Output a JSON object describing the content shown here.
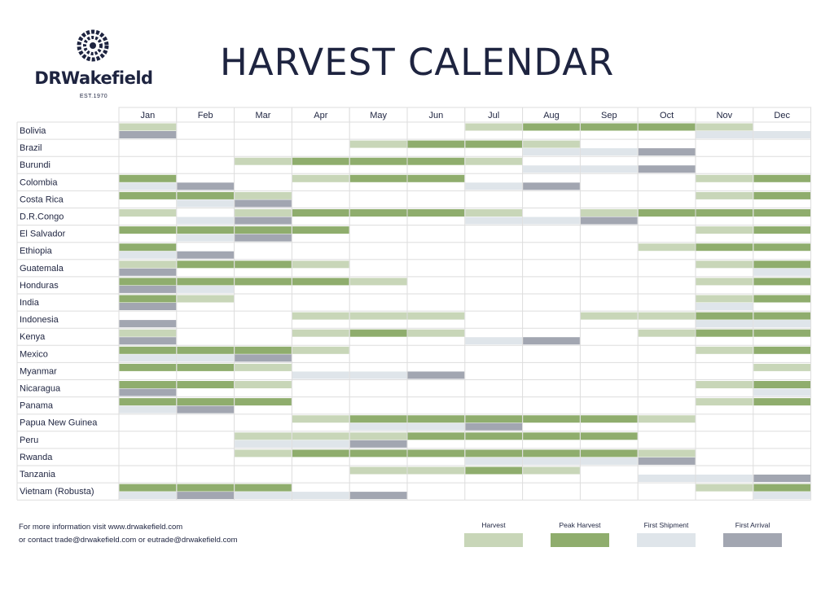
{
  "brand": {
    "name": "DRWakefield",
    "established": "EST.1970"
  },
  "title": "HARVEST CALENDAR",
  "colors": {
    "harvest": "#c8d6b8",
    "peak": "#8fad6d",
    "shipment": "#dfe5ea",
    "arrival": "#a2a6b1",
    "grid": "#dddddd",
    "text": "#1e2440"
  },
  "footer": {
    "line1": "For more information visit www.drwakefield.com",
    "line2": "or contact trade@drwakefield.com or eutrade@drwakefield.com"
  },
  "legend": [
    {
      "key": "harvest",
      "label": "Harvest"
    },
    {
      "key": "peak",
      "label": "Peak Harvest"
    },
    {
      "key": "shipment",
      "label": "First Shipment"
    },
    {
      "key": "arrival",
      "label": "First Arrival"
    }
  ],
  "chart_data": {
    "type": "table",
    "months": [
      "Jan",
      "Feb",
      "Mar",
      "Apr",
      "May",
      "Jun",
      "Jul",
      "Aug",
      "Sep",
      "Oct",
      "Nov",
      "Dec"
    ],
    "countries": [
      {
        "name": "Bolivia",
        "harvest": [
          "harvest",
          "",
          "",
          "",
          "",
          "",
          "harvest",
          "peak",
          "peak",
          "peak",
          "harvest",
          ""
        ],
        "shipment": [
          "arrival",
          "",
          "",
          "",
          "",
          "",
          "",
          "",
          "",
          "",
          "shipment",
          "shipment"
        ]
      },
      {
        "name": "Brazil",
        "harvest": [
          "",
          "",
          "",
          "",
          "harvest",
          "peak",
          "peak",
          "harvest",
          "",
          "",
          "",
          ""
        ],
        "shipment": [
          "",
          "",
          "",
          "",
          "",
          "",
          "",
          "shipment",
          "shipment",
          "arrival",
          "",
          ""
        ]
      },
      {
        "name": "Burundi",
        "harvest": [
          "",
          "",
          "harvest",
          "peak",
          "peak",
          "peak",
          "harvest",
          "",
          "",
          "",
          "",
          ""
        ],
        "shipment": [
          "",
          "",
          "",
          "",
          "",
          "",
          "",
          "shipment",
          "shipment",
          "arrival",
          "",
          ""
        ]
      },
      {
        "name": "Colombia",
        "harvest": [
          "peak",
          "",
          "",
          "harvest",
          "peak",
          "peak",
          "",
          "",
          "",
          "",
          "harvest",
          "peak"
        ],
        "shipment": [
          "shipment",
          "arrival",
          "",
          "",
          "",
          "",
          "shipment",
          "arrival",
          "",
          "",
          "",
          ""
        ]
      },
      {
        "name": "Costa Rica",
        "harvest": [
          "peak",
          "peak",
          "harvest",
          "",
          "",
          "",
          "",
          "",
          "",
          "",
          "harvest",
          "peak"
        ],
        "shipment": [
          "",
          "shipment",
          "arrival",
          "",
          "",
          "",
          "",
          "",
          "",
          "",
          "",
          ""
        ]
      },
      {
        "name": "D.R.Congo",
        "harvest": [
          "harvest",
          "",
          "harvest",
          "peak",
          "peak",
          "peak",
          "harvest",
          "",
          "harvest",
          "peak",
          "peak",
          "peak"
        ],
        "shipment": [
          "",
          "shipment",
          "arrival",
          "",
          "",
          "",
          "shipment",
          "shipment",
          "arrival",
          "",
          "",
          ""
        ]
      },
      {
        "name": "El Salvador",
        "harvest": [
          "peak",
          "peak",
          "peak",
          "peak",
          "",
          "",
          "",
          "",
          "",
          "",
          "harvest",
          "peak"
        ],
        "shipment": [
          "",
          "shipment",
          "arrival",
          "",
          "",
          "",
          "",
          "",
          "",
          "",
          "",
          ""
        ]
      },
      {
        "name": "Ethiopia",
        "harvest": [
          "peak",
          "",
          "",
          "",
          "",
          "",
          "",
          "",
          "",
          "harvest",
          "peak",
          "peak"
        ],
        "shipment": [
          "shipment",
          "arrival",
          "",
          "",
          "",
          "",
          "",
          "",
          "",
          "",
          "",
          ""
        ]
      },
      {
        "name": "Guatemala",
        "harvest": [
          "harvest",
          "peak",
          "peak",
          "harvest",
          "",
          "",
          "",
          "",
          "",
          "",
          "harvest",
          "peak"
        ],
        "shipment": [
          "arrival",
          "",
          "",
          "",
          "",
          "",
          "",
          "",
          "",
          "",
          "",
          "shipment"
        ]
      },
      {
        "name": "Honduras",
        "harvest": [
          "peak",
          "peak",
          "peak",
          "peak",
          "harvest",
          "",
          "",
          "",
          "",
          "",
          "harvest",
          "peak"
        ],
        "shipment": [
          "arrival",
          "shipment",
          "",
          "",
          "",
          "",
          "",
          "",
          "",
          "",
          "",
          ""
        ]
      },
      {
        "name": "India",
        "harvest": [
          "peak",
          "harvest",
          "",
          "",
          "",
          "",
          "",
          "",
          "",
          "",
          "harvest",
          "peak"
        ],
        "shipment": [
          "arrival",
          "",
          "",
          "",
          "",
          "",
          "",
          "",
          "",
          "",
          "shipment",
          ""
        ]
      },
      {
        "name": "Indonesia",
        "harvest": [
          "",
          "",
          "",
          "harvest",
          "harvest",
          "harvest",
          "",
          "",
          "harvest",
          "harvest",
          "peak",
          "peak"
        ],
        "shipment": [
          "arrival",
          "",
          "",
          "",
          "",
          "",
          "",
          "",
          "",
          "",
          "shipment",
          "shipment"
        ]
      },
      {
        "name": "Kenya",
        "harvest": [
          "harvest",
          "",
          "",
          "harvest",
          "peak",
          "harvest",
          "",
          "",
          "",
          "harvest",
          "peak",
          "peak"
        ],
        "shipment": [
          "arrival",
          "",
          "",
          "",
          "",
          "",
          "shipment",
          "arrival",
          "",
          "",
          "",
          ""
        ]
      },
      {
        "name": "Mexico",
        "harvest": [
          "peak",
          "peak",
          "peak",
          "harvest",
          "",
          "",
          "",
          "",
          "",
          "",
          "harvest",
          "peak"
        ],
        "shipment": [
          "shipment",
          "shipment",
          "arrival",
          "",
          "",
          "",
          "",
          "",
          "",
          "",
          "",
          ""
        ]
      },
      {
        "name": "Myanmar",
        "harvest": [
          "peak",
          "peak",
          "harvest",
          "",
          "",
          "",
          "",
          "",
          "",
          "",
          "",
          "harvest"
        ],
        "shipment": [
          "",
          "",
          "",
          "shipment",
          "shipment",
          "arrival",
          "",
          "",
          "",
          "",
          "",
          ""
        ]
      },
      {
        "name": "Nicaragua",
        "harvest": [
          "peak",
          "peak",
          "harvest",
          "",
          "",
          "",
          "",
          "",
          "",
          "",
          "harvest",
          "peak"
        ],
        "shipment": [
          "arrival",
          "",
          "",
          "",
          "",
          "",
          "",
          "",
          "",
          "",
          "",
          "shipment"
        ]
      },
      {
        "name": "Panama",
        "harvest": [
          "peak",
          "peak",
          "peak",
          "",
          "",
          "",
          "",
          "",
          "",
          "",
          "harvest",
          "peak"
        ],
        "shipment": [
          "shipment",
          "arrival",
          "",
          "",
          "",
          "",
          "",
          "",
          "",
          "",
          "",
          ""
        ]
      },
      {
        "name": "Papua New Guinea",
        "harvest": [
          "",
          "",
          "",
          "harvest",
          "peak",
          "peak",
          "peak",
          "peak",
          "peak",
          "harvest",
          "",
          ""
        ],
        "shipment": [
          "",
          "",
          "",
          "",
          "shipment",
          "shipment",
          "arrival",
          "",
          "",
          "",
          "",
          ""
        ]
      },
      {
        "name": "Peru",
        "harvest": [
          "",
          "",
          "harvest",
          "harvest",
          "harvest",
          "peak",
          "peak",
          "peak",
          "peak",
          "",
          "",
          ""
        ],
        "shipment": [
          "",
          "",
          "shipment",
          "shipment",
          "arrival",
          "",
          "",
          "",
          "",
          "",
          "",
          ""
        ]
      },
      {
        "name": "Rwanda",
        "harvest": [
          "",
          "",
          "harvest",
          "peak",
          "peak",
          "peak",
          "peak",
          "peak",
          "peak",
          "harvest",
          "",
          ""
        ],
        "shipment": [
          "",
          "",
          "",
          "",
          "",
          "",
          "shipment",
          "shipment",
          "shipment",
          "arrival",
          "",
          ""
        ]
      },
      {
        "name": "Tanzania",
        "harvest": [
          "",
          "",
          "",
          "",
          "harvest",
          "harvest",
          "peak",
          "harvest",
          "",
          "",
          "",
          ""
        ],
        "shipment": [
          "",
          "",
          "",
          "",
          "",
          "",
          "",
          "",
          "",
          "shipment",
          "shipment",
          "arrival"
        ]
      },
      {
        "name": "Vietnam (Robusta)",
        "harvest": [
          "peak",
          "peak",
          "peak",
          "",
          "",
          "",
          "",
          "",
          "",
          "",
          "harvest",
          "peak"
        ],
        "shipment": [
          "shipment",
          "arrival",
          "shipment",
          "shipment",
          "arrival",
          "",
          "",
          "",
          "",
          "",
          "",
          "shipment"
        ]
      }
    ]
  }
}
